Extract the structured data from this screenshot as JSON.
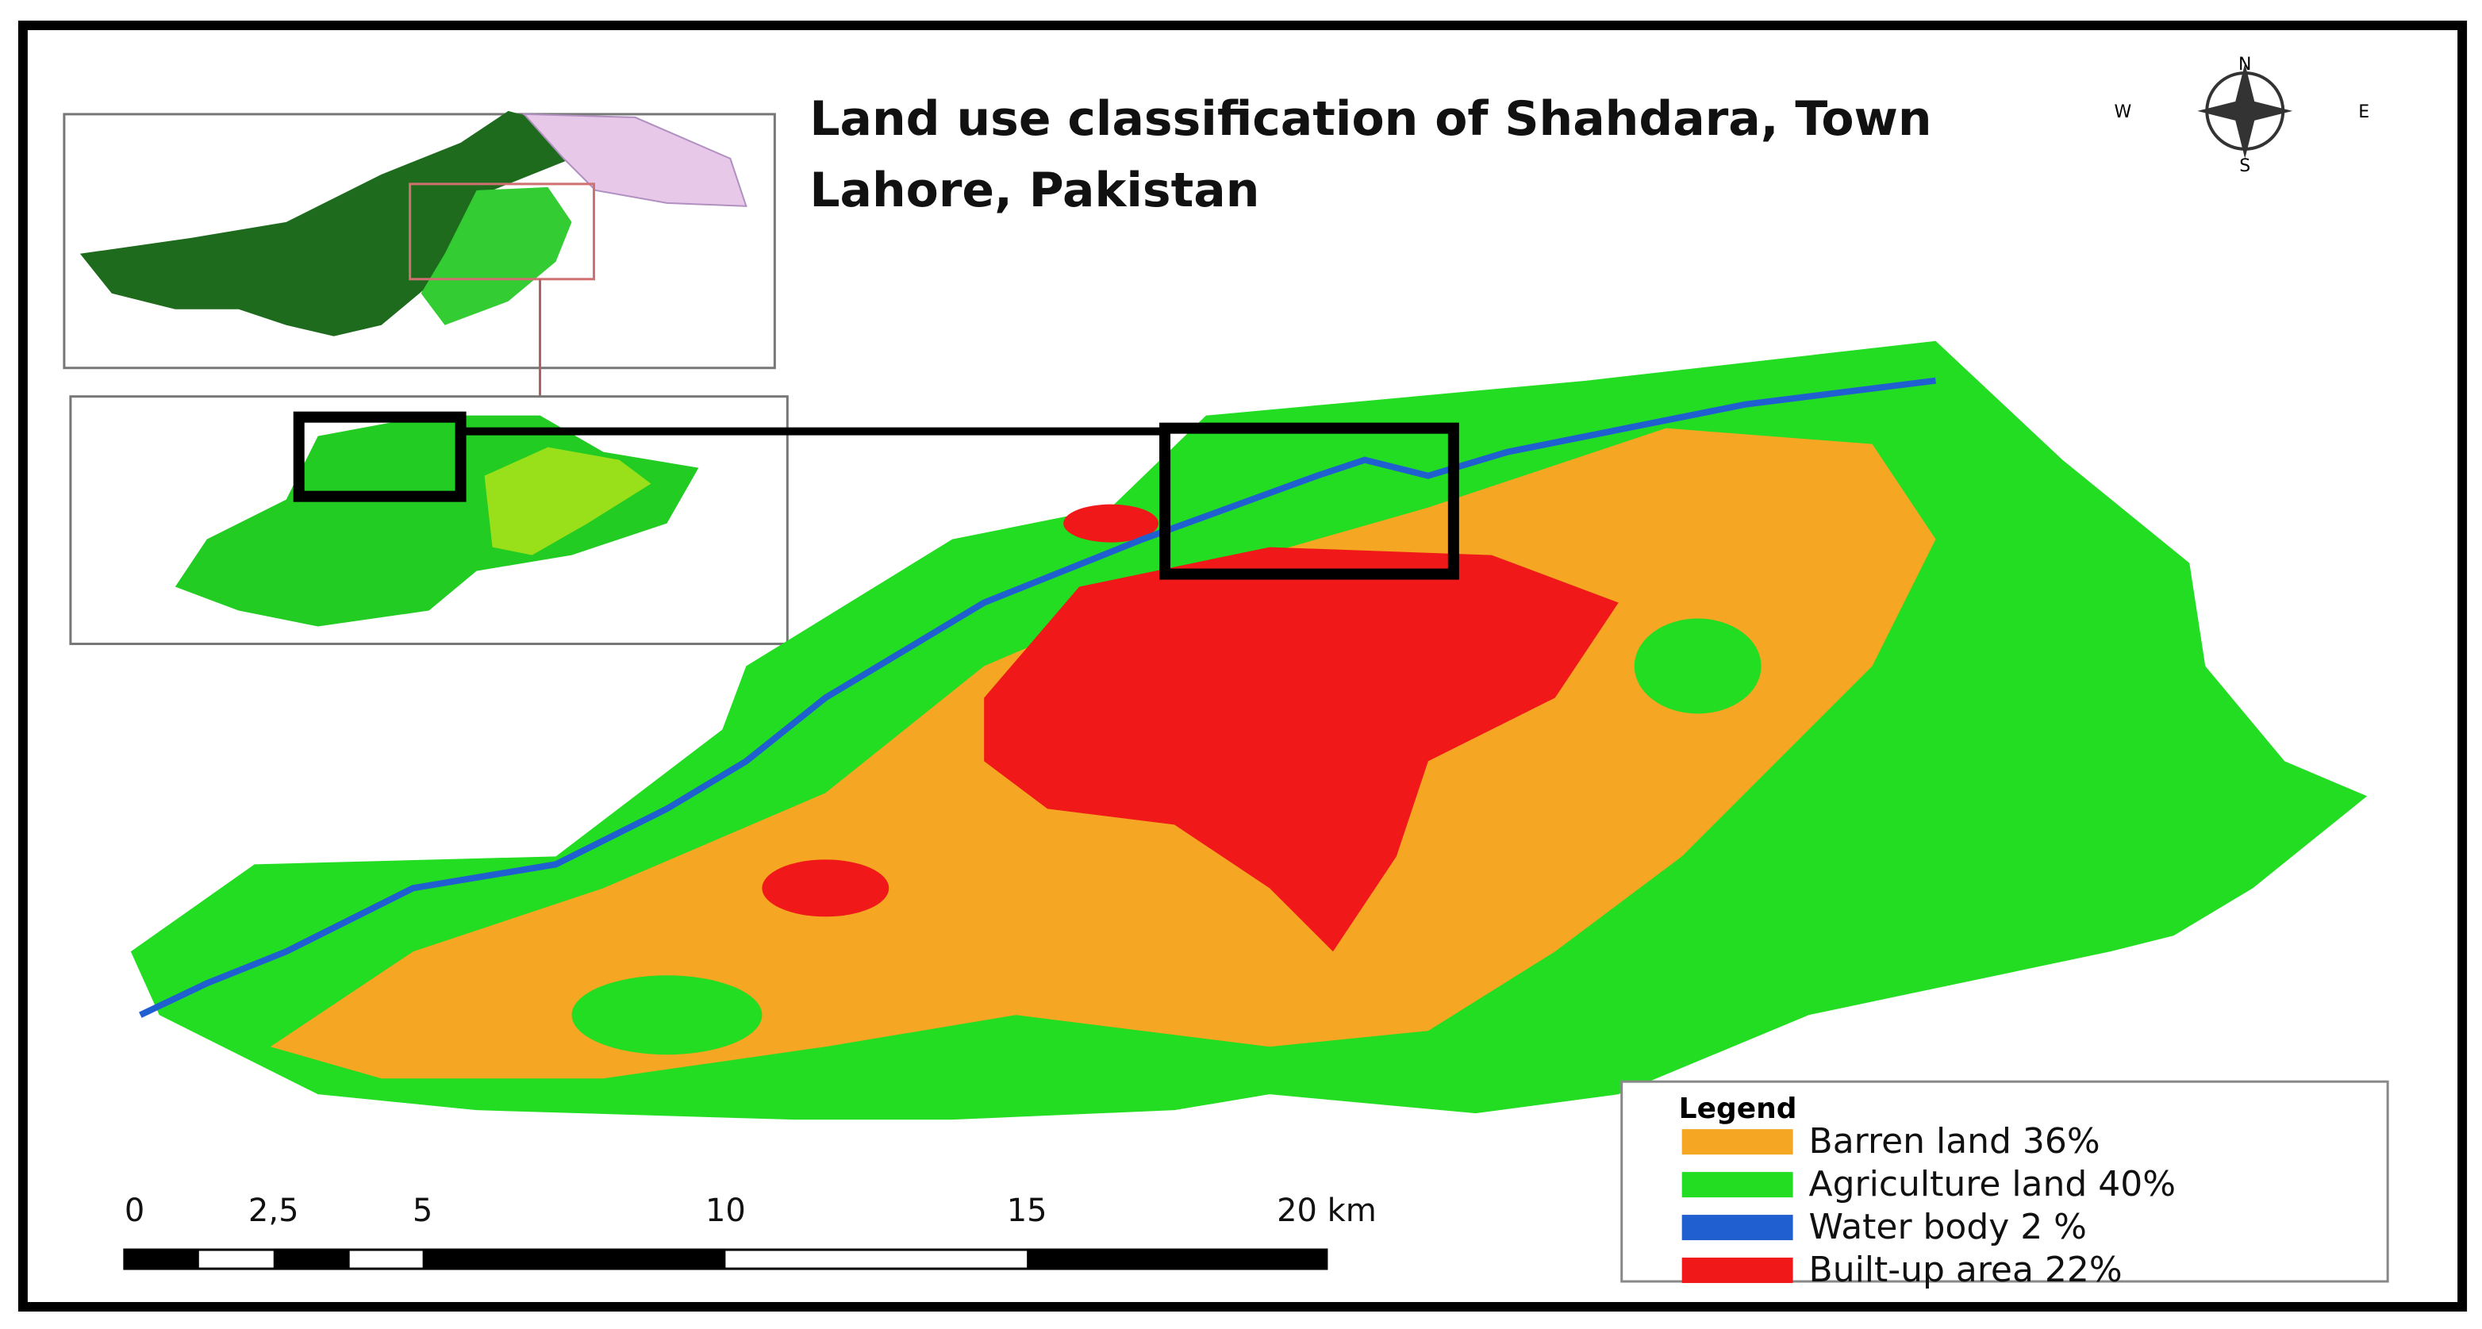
{
  "title": {
    "lines": [
      "Land use classification of Shahdara, Town",
      "Lahore, Pakistan"
    ]
  },
  "compass": {
    "north": "N",
    "south": "S",
    "east": "E",
    "west": "W"
  },
  "legend": {
    "title": "Legend",
    "items": [
      {
        "label": "Barren land 36%",
        "color": "#f5a623"
      },
      {
        "label": "Agriculture land 40%",
        "color": "#22dd22"
      },
      {
        "label": "Water body 2 %",
        "color": "#1f5fd0"
      },
      {
        "label": "Built-up area 22%",
        "color": "#f01818"
      }
    ]
  },
  "scale_bar": {
    "labels": [
      "0",
      "2,5",
      "5",
      "10",
      "15",
      "20 km"
    ]
  }
}
